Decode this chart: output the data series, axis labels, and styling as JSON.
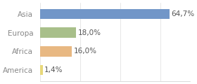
{
  "categories": [
    "America",
    "Africa",
    "Europa",
    "Asia"
  ],
  "values": [
    1.4,
    16.0,
    18.0,
    64.7
  ],
  "labels": [
    "1,4%",
    "16,0%",
    "18,0%",
    "64,7%"
  ],
  "bar_colors": [
    "#e8d87a",
    "#e8b882",
    "#a8bf8a",
    "#7196c8"
  ],
  "background_color": "#ffffff",
  "text_color": "#888888",
  "bar_label_color": "#555555",
  "xlim": [
    0,
    75
  ],
  "font_size": 7.5,
  "label_font_size": 7.5
}
